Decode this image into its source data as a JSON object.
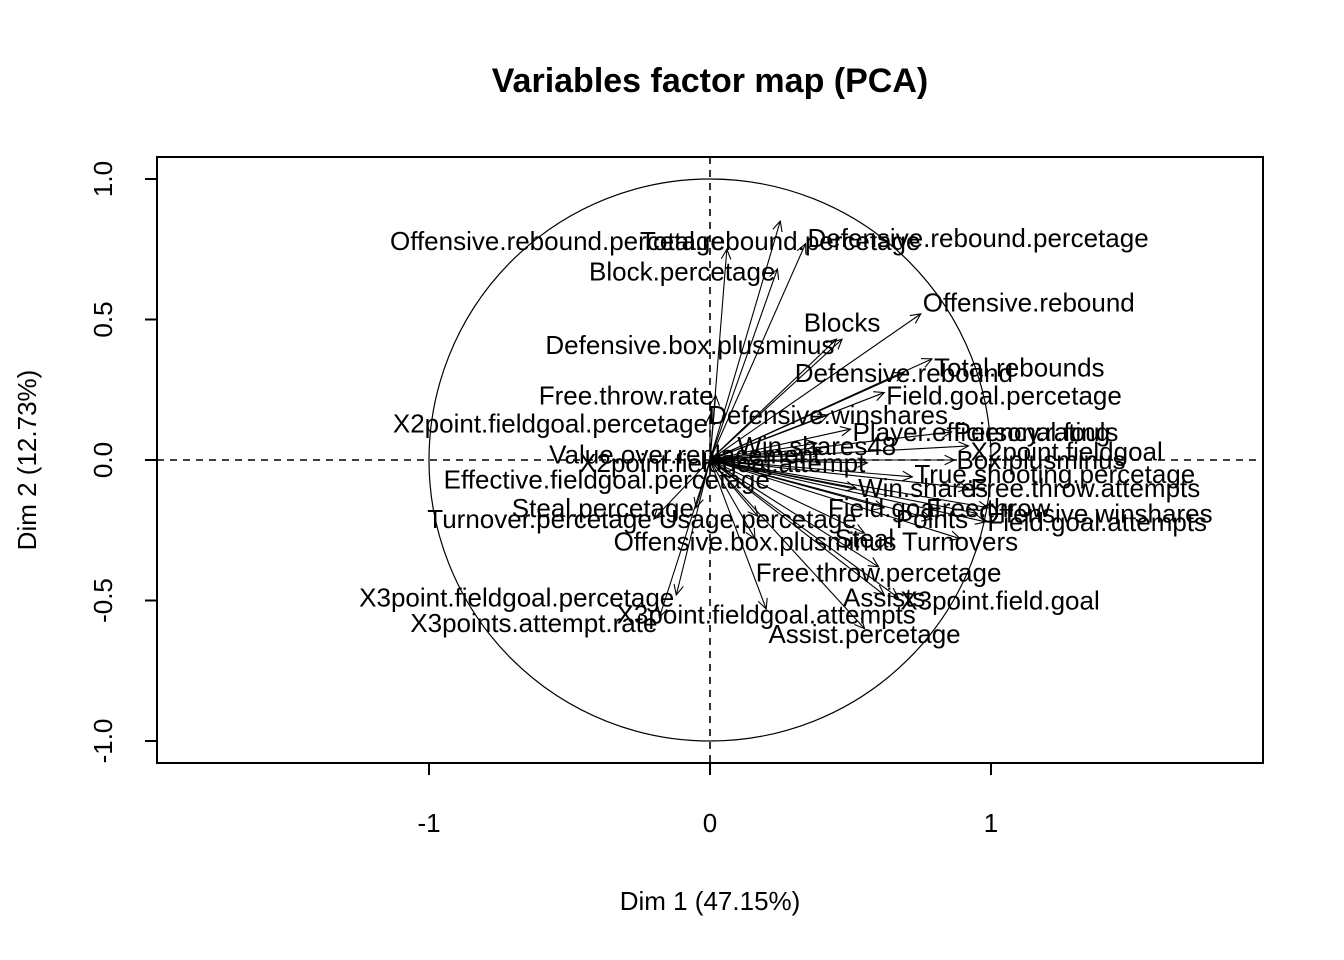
{
  "chart_data": {
    "type": "scatter",
    "title": "Variables factor map (PCA)",
    "xlabel": "Dim 1 (47.15%)",
    "ylabel": "Dim 2 (12.73%)",
    "xlim": [
      -1.97,
      1.97
    ],
    "ylim": [
      -1.08,
      1.08
    ],
    "x_ticks": [
      {
        "value": -1,
        "label": "-1"
      },
      {
        "value": 0,
        "label": "0"
      },
      {
        "value": 1,
        "label": "1"
      }
    ],
    "y_ticks": [
      {
        "value": -1,
        "label": "-1.0"
      },
      {
        "value": -0.5,
        "label": "-0.5"
      },
      {
        "value": 0,
        "label": "0.0"
      },
      {
        "value": 0.5,
        "label": "0.5"
      },
      {
        "value": 1,
        "label": "1.0"
      }
    ],
    "grid": false,
    "unit_circle": true,
    "variables": [
      {
        "name": "Total.rebound.percetage",
        "x": 0.25,
        "y": 0.85,
        "anchor": "middle",
        "label_dy": -0.07
      },
      {
        "name": "Offensive.rebound.percetage",
        "x": 0.06,
        "y": 0.75,
        "anchor": "end",
        "label_dy": 0.03
      },
      {
        "name": "Defensive.rebound.percetage",
        "x": 0.34,
        "y": 0.77,
        "anchor": "start",
        "label_dy": 0.02
      },
      {
        "name": "Block.percetage",
        "x": 0.24,
        "y": 0.68,
        "anchor": "end",
        "label_dy": -0.01
      },
      {
        "name": "Blocks",
        "x": 0.47,
        "y": 0.43,
        "anchor": "middle",
        "label_dy": 0.06
      },
      {
        "name": "Offensive.rebound",
        "x": 0.75,
        "y": 0.52,
        "anchor": "start",
        "label_dy": 0.04
      },
      {
        "name": "Defensive.box.plusminus",
        "x": 0.45,
        "y": 0.43,
        "anchor": "end",
        "label_dy": -0.02
      },
      {
        "name": "Total.rebounds",
        "x": 0.79,
        "y": 0.36,
        "anchor": "start",
        "label_dy": -0.03
      },
      {
        "name": "Defensive.rebound",
        "x": 0.69,
        "y": 0.31,
        "anchor": "middle",
        "label_dy": 0.0
      },
      {
        "name": "Free.throw.rate",
        "x": 0.02,
        "y": 0.23,
        "anchor": "end",
        "label_dy": 0.0
      },
      {
        "name": "Field.goal.percetage",
        "x": 0.62,
        "y": 0.24,
        "anchor": "start",
        "label_dy": -0.01
      },
      {
        "name": "X2point.fieldgoal.percetage",
        "x": 0.0,
        "y": 0.16,
        "anchor": "end",
        "label_dy": -0.03
      },
      {
        "name": "Defensive.winshares",
        "x": 0.42,
        "y": 0.16,
        "anchor": "middle",
        "label_dy": 0.0
      },
      {
        "name": "Player.efficiency.rating",
        "x": 0.5,
        "y": 0.11,
        "anchor": "start",
        "label_dy": -0.01
      },
      {
        "name": "Personal.fouls",
        "x": 0.86,
        "y": 0.1,
        "anchor": "start",
        "label_dy": 0.0
      },
      {
        "name": "Win.shares48",
        "x": 0.38,
        "y": 0.06,
        "anchor": "middle",
        "label_dy": -0.01
      },
      {
        "name": "X2point.fieldgoal",
        "x": 0.92,
        "y": 0.05,
        "anchor": "start",
        "label_dy": -0.02
      },
      {
        "name": "Value.over.replacement",
        "x": 0.4,
        "y": 0.03,
        "anchor": "end",
        "label_dy": -0.01
      },
      {
        "name": "Box.plusminus",
        "x": 0.87,
        "y": 0.0,
        "anchor": "start",
        "label_dy": 0.0
      },
      {
        "name": "X2point.fieldgoal.attempt",
        "x": 0.56,
        "y": -0.01,
        "anchor": "end",
        "label_dy": 0.0
      },
      {
        "name": "True.shooting.percetage",
        "x": 0.72,
        "y": -0.06,
        "anchor": "start",
        "label_dy": 0.01
      },
      {
        "name": "Effective.fieldgoal.percetage",
        "x": 0.22,
        "y": -0.05,
        "anchor": "end",
        "label_dy": -0.02
      },
      {
        "name": "Win.shares",
        "x": 0.52,
        "y": -0.1,
        "anchor": "start",
        "label_dy": 0.0
      },
      {
        "name": "Free.throw.attempts",
        "x": 0.92,
        "y": -0.1,
        "anchor": "start",
        "label_dy": 0.0
      },
      {
        "name": "Steal.percetage",
        "x": -0.05,
        "y": -0.17,
        "anchor": "end",
        "label_dy": 0.0
      },
      {
        "name": "Field.goal",
        "x": 0.62,
        "y": -0.17,
        "anchor": "middle",
        "label_dy": 0.0
      },
      {
        "name": "Free.throw",
        "x": 0.99,
        "y": -0.17,
        "anchor": "middle",
        "label_dy": 0.0
      },
      {
        "name": "Offensive.winshares",
        "x": 0.95,
        "y": -0.19,
        "anchor": "start",
        "label_dy": 0.0
      },
      {
        "name": "Turnover.percetage",
        "x": -0.2,
        "y": -0.21,
        "anchor": "end",
        "label_dy": 0.0
      },
      {
        "name": "Usage.percetage",
        "x": 0.17,
        "y": -0.2,
        "anchor": "middle",
        "label_dy": -0.01
      },
      {
        "name": "Points",
        "x": 0.79,
        "y": -0.21,
        "anchor": "middle",
        "label_dy": 0.0
      },
      {
        "name": "Field.goal.attempts",
        "x": 0.98,
        "y": -0.22,
        "anchor": "start",
        "label_dy": 0.0
      },
      {
        "name": "Offensive.box.plusminus",
        "x": 0.16,
        "y": -0.28,
        "anchor": "middle",
        "label_dy": -0.01
      },
      {
        "name": "Steal",
        "x": 0.55,
        "y": -0.26,
        "anchor": "middle",
        "label_dy": -0.02
      },
      {
        "name": "Turnovers",
        "x": 0.89,
        "y": -0.28,
        "anchor": "middle",
        "label_dy": -0.01
      },
      {
        "name": "Free.throw.percetage",
        "x": 0.6,
        "y": -0.38,
        "anchor": "middle",
        "label_dy": -0.02
      },
      {
        "name": "X3point.fieldgoal.percetage",
        "x": -0.12,
        "y": -0.48,
        "anchor": "end",
        "label_dy": -0.01
      },
      {
        "name": "Assists",
        "x": 0.62,
        "y": -0.48,
        "anchor": "middle",
        "label_dy": -0.01
      },
      {
        "name": "X3point.field.goal",
        "x": 0.67,
        "y": -0.49,
        "anchor": "start",
        "label_dy": -0.01
      },
      {
        "name": "X3point.fieldgoal.attempts",
        "x": 0.2,
        "y": -0.53,
        "anchor": "middle",
        "label_dy": -0.02
      },
      {
        "name": "X3points.attempt.rate",
        "x": -0.18,
        "y": -0.56,
        "anchor": "end",
        "label_dy": -0.02
      },
      {
        "name": "Assist.percetage",
        "x": 0.55,
        "y": -0.6,
        "anchor": "middle",
        "label_dy": -0.02
      }
    ]
  }
}
